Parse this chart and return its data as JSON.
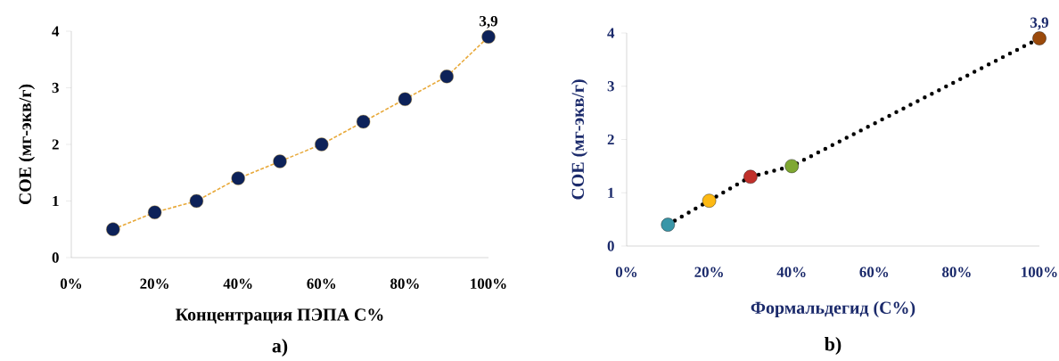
{
  "chart_data": [
    {
      "type": "line",
      "xlabel": "Концентрация ПЭПА С%",
      "ylabel": "СОЕ (мг-экв/г)",
      "annotations": [
        "a)"
      ],
      "x": [
        10,
        20,
        30,
        40,
        50,
        60,
        70,
        80,
        90,
        100
      ],
      "series": [
        {
          "color": "#e8a93a",
          "line_style": "dashed",
          "marker": "none",
          "values": [
            0.5,
            0.8,
            1.0,
            1.4,
            1.7,
            2.0,
            2.4,
            2.8,
            3.2,
            3.9
          ]
        },
        {
          "type": "scatter",
          "color": "#0d2259",
          "marker": "circle",
          "values": [
            0.5,
            0.8,
            1.0,
            1.4,
            1.7,
            2.0,
            2.4,
            2.8,
            3.2,
            3.9
          ],
          "value_labels": [
            null,
            null,
            null,
            null,
            null,
            null,
            null,
            null,
            null,
            "3,9"
          ]
        }
      ],
      "grid": false,
      "xlim": [
        0,
        100
      ],
      "ylim": [
        0,
        4
      ],
      "xticks": [
        {
          "value": 0,
          "label": "0%"
        },
        {
          "value": 20,
          "label": "20%"
        },
        {
          "value": 40,
          "label": "40%"
        },
        {
          "value": 60,
          "label": "60%"
        },
        {
          "value": 80,
          "label": "80%"
        },
        {
          "value": 100,
          "label": "100%"
        }
      ],
      "yticks": [
        0,
        1,
        2,
        3,
        4
      ]
    },
    {
      "type": "line",
      "xlabel": "Формальдегид (С%)",
      "ylabel": "СОЕ (мг-экв/г)",
      "annotations": [
        "b)"
      ],
      "x": [
        10,
        20,
        30,
        40,
        100
      ],
      "series": [
        {
          "color": "#000000",
          "line_style": "dotted",
          "marker": "none",
          "values": [
            0.4,
            0.85,
            1.3,
            1.5,
            3.9
          ]
        },
        {
          "type": "scatter",
          "marker": "circle",
          "colors": [
            "#3a96a8",
            "#fdb913",
            "#c0302b",
            "#7fa832",
            "#9b4a0b"
          ],
          "values": [
            0.4,
            0.85,
            1.3,
            1.5,
            3.9
          ],
          "value_labels": [
            null,
            null,
            null,
            null,
            "3,9"
          ]
        }
      ],
      "grid": false,
      "xlim": [
        0,
        100
      ],
      "ylim": [
        0,
        4
      ],
      "xticks": [
        {
          "value": 0,
          "label": "0%"
        },
        {
          "value": 20,
          "label": "20%"
        },
        {
          "value": 40,
          "label": "40%"
        },
        {
          "value": 60,
          "label": "60%"
        },
        {
          "value": 80,
          "label": "80%"
        },
        {
          "value": 100,
          "label": "100%"
        }
      ],
      "yticks": [
        0,
        1,
        2,
        3,
        4
      ]
    }
  ]
}
